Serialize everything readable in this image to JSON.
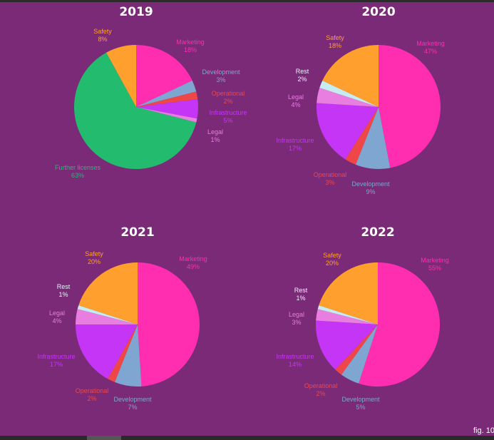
{
  "figure_label": "fig. 10",
  "colors": {
    "background": "#7b2a78",
    "Safety": "#ffa02e",
    "Marketing": "#ff2db0",
    "Development": "#7ea6d0",
    "Operational": "#ef4747",
    "Infrastructure": "#c535f5",
    "Legal": "#e77ee0",
    "Rest": "#c6ecf0",
    "Further licenses": "#23bc6e",
    "Rest_label": "#e6f4f8"
  },
  "chart_data": [
    {
      "type": "pie",
      "title": "2019",
      "slices": [
        {
          "label": "Marketing",
          "value": 18,
          "pct": "18%"
        },
        {
          "label": "Development",
          "value": 3,
          "pct": "3%"
        },
        {
          "label": "Operational",
          "value": 2,
          "pct": "2%"
        },
        {
          "label": "Infrastructure",
          "value": 5,
          "pct": "5%"
        },
        {
          "label": "Legal",
          "value": 1,
          "pct": "1%"
        },
        {
          "label": "Further licenses",
          "value": 63,
          "pct": "63%"
        },
        {
          "label": "Safety",
          "value": 8,
          "pct": "8%"
        }
      ]
    },
    {
      "type": "pie",
      "title": "2020",
      "slices": [
        {
          "label": "Marketing",
          "value": 47,
          "pct": "47%"
        },
        {
          "label": "Development",
          "value": 9,
          "pct": "9%"
        },
        {
          "label": "Operational",
          "value": 3,
          "pct": "3%"
        },
        {
          "label": "Infrastructure",
          "value": 17,
          "pct": "17%"
        },
        {
          "label": "Legal",
          "value": 4,
          "pct": "4%"
        },
        {
          "label": "Rest",
          "value": 2,
          "pct": "2%"
        },
        {
          "label": "Safety",
          "value": 18,
          "pct": "18%"
        }
      ]
    },
    {
      "type": "pie",
      "title": "2021",
      "slices": [
        {
          "label": "Marketing",
          "value": 49,
          "pct": "49%"
        },
        {
          "label": "Development",
          "value": 7,
          "pct": "7%"
        },
        {
          "label": "Operational",
          "value": 2,
          "pct": "2%"
        },
        {
          "label": "Infrastructure",
          "value": 17,
          "pct": "17%"
        },
        {
          "label": "Legal",
          "value": 4,
          "pct": "4%"
        },
        {
          "label": "Rest",
          "value": 1,
          "pct": "1%"
        },
        {
          "label": "Safety",
          "value": 20,
          "pct": "20%"
        }
      ]
    },
    {
      "type": "pie",
      "title": "2022",
      "slices": [
        {
          "label": "Marketing",
          "value": 55,
          "pct": "55%"
        },
        {
          "label": "Development",
          "value": 5,
          "pct": "5%"
        },
        {
          "label": "Operational",
          "value": 2,
          "pct": "2%"
        },
        {
          "label": "Infrastructure",
          "value": 14,
          "pct": "14%"
        },
        {
          "label": "Legal",
          "value": 3,
          "pct": "3%"
        },
        {
          "label": "Rest",
          "value": 1,
          "pct": "1%"
        },
        {
          "label": "Safety",
          "value": 20,
          "pct": "20%"
        }
      ]
    }
  ]
}
